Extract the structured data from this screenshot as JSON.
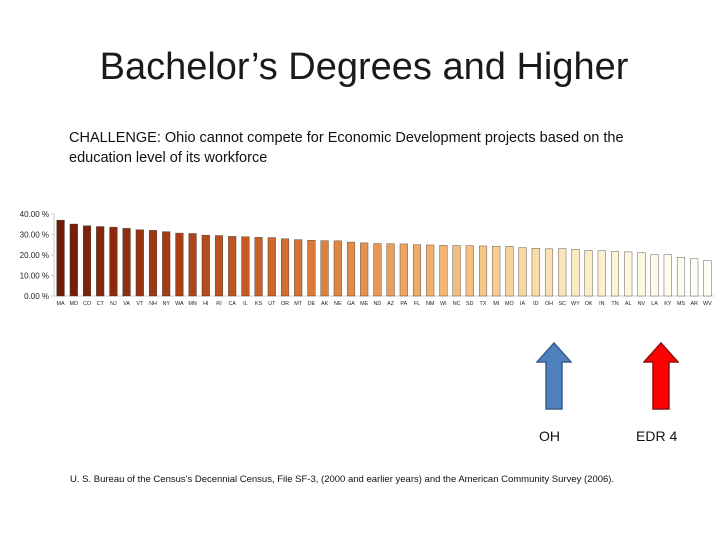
{
  "slide": {
    "title": "Bachelor’s Degrees and Higher",
    "challenge": "CHALLENGE:  Ohio cannot compete for Economic Development projects based on the education level of its workforce",
    "source": "U. S. Bureau of the Census's Decennial Census, File SF-3, (2000 and earlier years) and the American Community Survey (2006)."
  },
  "markers": {
    "oh": {
      "label": "OH",
      "color": "#4f81bd",
      "direction": "up"
    },
    "edr4": {
      "label": "EDR 4",
      "color": "#ff0000",
      "direction": "up"
    }
  },
  "chart_data": {
    "type": "bar",
    "title": "",
    "xlabel": "",
    "ylabel": "",
    "ylim": [
      0,
      40
    ],
    "yticks": [
      0,
      10,
      20,
      30,
      40
    ],
    "ytick_labels": [
      "0.00 %",
      "10.00 %",
      "20.00 %",
      "30.00 %",
      "40.00 %"
    ],
    "grid": false,
    "categories": [
      "MA",
      "MD",
      "CO",
      "CT",
      "NJ",
      "VA",
      "VT",
      "NH",
      "NY",
      "WA",
      "MN",
      "HI",
      "RI",
      "CA",
      "IL",
      "KS",
      "UT",
      "OR",
      "MT",
      "DE",
      "AK",
      "NE",
      "GA",
      "ME",
      "ND",
      "AZ",
      "PA",
      "FL",
      "NM",
      "WI",
      "NC",
      "SD",
      "TX",
      "MI",
      "MO",
      "IA",
      "ID",
      "OH",
      "SC",
      "WY",
      "OK",
      "IN",
      "TN",
      "AL",
      "NV",
      "LA",
      "KY",
      "MS",
      "AR",
      "WV"
    ],
    "values": [
      37.0,
      35.1,
      34.3,
      33.9,
      33.6,
      33.0,
      32.3,
      32.0,
      31.4,
      30.7,
      30.5,
      29.7,
      29.5,
      29.1,
      28.9,
      28.6,
      28.5,
      27.9,
      27.5,
      27.2,
      27.0,
      26.9,
      26.3,
      25.9,
      25.6,
      25.5,
      25.4,
      25.0,
      24.9,
      24.7,
      24.6,
      24.5,
      24.4,
      24.3,
      24.2,
      23.6,
      23.3,
      23.0,
      23.1,
      22.8,
      22.2,
      22.1,
      21.7,
      21.5,
      21.1,
      20.2,
      20.1,
      18.9,
      18.2,
      17.3
    ],
    "colors": [
      "#6e1c08",
      "#751f09",
      "#7c220a",
      "#83260b",
      "#8a2a0c",
      "#902e0e",
      "#97320f",
      "#9d3711",
      "#a33b13",
      "#a94015",
      "#af4517",
      "#b54a1a",
      "#ba501d",
      "#bf5520",
      "#c45b23",
      "#c96127",
      "#cd672b",
      "#d16d2f",
      "#d57333",
      "#d97a38",
      "#dc803d",
      "#df8642",
      "#e28c48",
      "#e5924e",
      "#e89854",
      "#ea9e5a",
      "#eca460",
      "#eeaa67",
      "#f0b06e",
      "#f2b675",
      "#f3bc7c",
      "#f5c283",
      "#f6c78b",
      "#f7cd93",
      "#f8d29b",
      "#f9d7a3",
      "#fadcab",
      "#fbe1b3",
      "#fbe5ba",
      "#fce9c2",
      "#fcedc9",
      "#fdf0d0",
      "#fdf3d7",
      "#fef6dd",
      "#fef8e3",
      "#fefae8",
      "#fffbec",
      "#fffcf0",
      "#fffdf3",
      "#fffef6"
    ]
  }
}
